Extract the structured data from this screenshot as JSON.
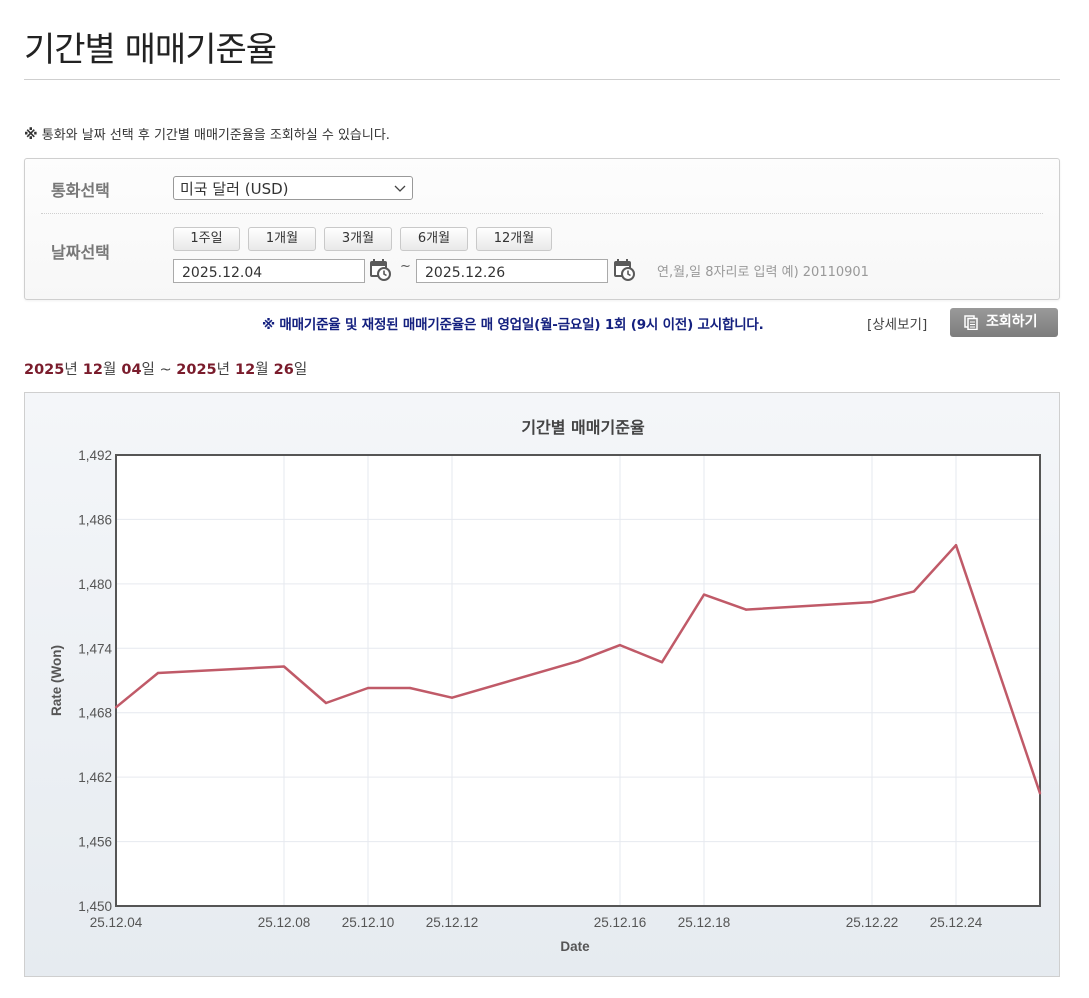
{
  "page": {
    "title": "기간별 매매기준율",
    "notice_mark": "※",
    "notice": "통화와 날짜 선택 후 기간별 매매기준율을 조회하실 수 있습니다."
  },
  "form": {
    "currency_label": "통화선택",
    "currency_value": "미국 달러 (USD)",
    "date_label": "날짜선택",
    "period_buttons": [
      "1주일",
      "1개월",
      "3개월",
      "6개월",
      "12개월"
    ],
    "start_date": "2025.12.04",
    "end_date": "2025.12.26",
    "tilde": "~",
    "hint": "연,월,일 8자리로 입력 예) 20110901"
  },
  "announcement": "※ 매매기준율 및 재정된 매매기준율은 매 영업일(월-금요일) 1회 (9시 이전) 고시합니다.",
  "detail_link": "[상세보기]",
  "search_button": "조회하기",
  "range": {
    "y1": "2025",
    "u1": "년",
    "m1": "12",
    "u2": "월",
    "d1": "04",
    "u3": "일",
    "sep": " ~ ",
    "y2": "2025",
    "u4": "년",
    "m2": "12",
    "u5": "월",
    "d2": "26",
    "u6": "일"
  },
  "chart_data": {
    "type": "line",
    "title": "기간별 매매기준율",
    "xlabel": "Date",
    "ylabel": "Rate (Won)",
    "ylim": [
      1450,
      1492
    ],
    "yticks": [
      "1,450",
      "1,456",
      "1,462",
      "1,468",
      "1,474",
      "1,480",
      "1,486",
      "1,492"
    ],
    "x_tick_labels": [
      "25.12.04",
      "25.12.08",
      "25.12.10",
      "25.12.12",
      "25.12.16",
      "25.12.18",
      "25.12.22",
      "25.12.24"
    ],
    "grid": true,
    "line_color": "#c05a68",
    "series": [
      {
        "x": [
          "25.12.04",
          "25.12.05",
          "25.12.08",
          "25.12.09",
          "25.12.10",
          "25.12.11",
          "25.12.12",
          "25.12.15",
          "25.12.16",
          "25.12.17",
          "25.12.18",
          "25.12.19",
          "25.12.22",
          "25.12.23",
          "25.12.24",
          "25.12.26"
        ],
        "values": [
          1468.5,
          1471.7,
          1472.3,
          1468.9,
          1470.3,
          1470.3,
          1469.4,
          1472.8,
          1474.3,
          1472.7,
          1479.0,
          1477.6,
          1478.3,
          1479.3,
          1483.6,
          1460.5
        ]
      }
    ]
  }
}
